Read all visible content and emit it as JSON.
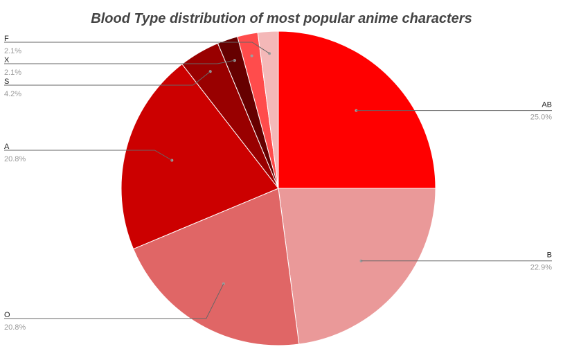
{
  "chart_data": {
    "type": "pie",
    "title": "Blood Type distribution of most popular anime characters",
    "slices": [
      {
        "label": "AB",
        "percent_label": "25.0%",
        "value": 25.0,
        "color": "#ff0000"
      },
      {
        "label": "B",
        "percent_label": "22.9%",
        "value": 22.9,
        "color": "#ea9999"
      },
      {
        "label": "O",
        "percent_label": "20.8%",
        "value": 20.8,
        "color": "#e06666"
      },
      {
        "label": "A",
        "percent_label": "20.8%",
        "value": 20.8,
        "color": "#cc0000"
      },
      {
        "label": "S",
        "percent_label": "4.2%",
        "value": 4.2,
        "color": "#990000"
      },
      {
        "label": "X",
        "percent_label": "2.1%",
        "value": 2.1,
        "color": "#660000"
      },
      {
        "label": "",
        "percent_label": "",
        "value": 2.1,
        "color": "#ff4c4c"
      },
      {
        "label": "F",
        "percent_label": "2.1%",
        "value": 2.1,
        "color": "#f4b8b8"
      }
    ],
    "legend": "none",
    "label_style": "leader-lines"
  }
}
